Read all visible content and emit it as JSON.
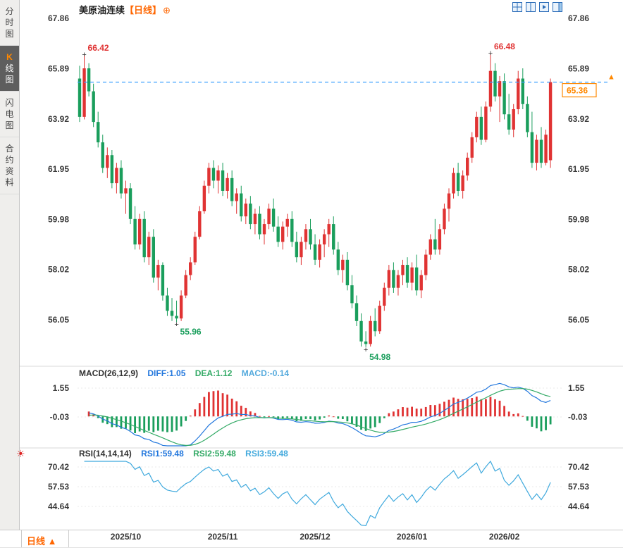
{
  "sidebar": {
    "items": [
      {
        "label": "分时图"
      },
      {
        "accent": "K",
        "label": "线图"
      },
      {
        "label": "闪电图"
      },
      {
        "label": "合约资料"
      }
    ]
  },
  "header": {
    "title": "美原油连续",
    "period_tag": "【日线】",
    "plus_icon": "⊕"
  },
  "footer": {
    "period": "日线",
    "arrow": "▲"
  },
  "colors": {
    "up": "#e03333",
    "down": "#1a9e5c",
    "accent": "#ff8800",
    "last_line": "#3aa0ff",
    "diff": "#2277dd",
    "dea": "#33aa66",
    "rsi_line": "#3fa9dd"
  },
  "chart_data": {
    "type": "candlestick",
    "title": "美原油连续【日线】",
    "y_ticks": [
      67.86,
      65.89,
      63.92,
      61.95,
      59.98,
      58.02,
      56.05
    ],
    "x_ticks": [
      {
        "index": 10,
        "label": "2025/10"
      },
      {
        "index": 31,
        "label": "2025/11"
      },
      {
        "index": 51,
        "label": "2025/12"
      },
      {
        "index": 72,
        "label": "2026/01"
      },
      {
        "index": 92,
        "label": "2026/02"
      }
    ],
    "last_price": 65.36,
    "annotations": [
      {
        "index": 1,
        "type": "high",
        "text": "66.42"
      },
      {
        "index": 89,
        "type": "high",
        "text": "66.48"
      },
      {
        "index": 21,
        "type": "low",
        "text": "55.96"
      },
      {
        "index": 62,
        "type": "low",
        "text": "54.98"
      }
    ],
    "candles": [
      [
        65.5,
        66.0,
        63.8,
        64.0
      ],
      [
        64.0,
        66.42,
        63.9,
        65.9
      ],
      [
        65.9,
        66.1,
        64.8,
        65.0
      ],
      [
        65.0,
        65.3,
        63.6,
        63.8
      ],
      [
        63.8,
        64.2,
        62.8,
        63.0
      ],
      [
        63.0,
        63.3,
        61.8,
        62.0
      ],
      [
        62.0,
        62.8,
        61.6,
        62.5
      ],
      [
        62.5,
        62.7,
        61.2,
        61.4
      ],
      [
        61.4,
        62.2,
        61.0,
        62.0
      ],
      [
        62.0,
        62.3,
        60.8,
        61.0
      ],
      [
        61.0,
        61.5,
        60.2,
        61.2
      ],
      [
        61.2,
        61.4,
        59.8,
        60.0
      ],
      [
        60.0,
        60.5,
        58.8,
        59.0
      ],
      [
        59.0,
        60.2,
        58.8,
        60.0
      ],
      [
        60.0,
        60.3,
        58.3,
        58.5
      ],
      [
        58.5,
        59.5,
        58.2,
        59.3
      ],
      [
        59.3,
        59.6,
        57.5,
        57.7
      ],
      [
        57.7,
        58.4,
        57.2,
        58.2
      ],
      [
        58.2,
        58.3,
        56.8,
        57.0
      ],
      [
        57.0,
        57.3,
        56.2,
        56.4
      ],
      [
        56.4,
        56.9,
        56.0,
        56.2
      ],
      [
        56.2,
        56.8,
        55.96,
        56.1
      ],
      [
        56.1,
        57.2,
        56.0,
        57.0
      ],
      [
        57.0,
        58.0,
        56.9,
        57.8
      ],
      [
        57.8,
        58.5,
        57.6,
        58.3
      ],
      [
        58.3,
        59.5,
        58.2,
        59.3
      ],
      [
        59.3,
        60.5,
        59.2,
        60.3
      ],
      [
        60.3,
        61.5,
        60.2,
        61.3
      ],
      [
        61.3,
        62.2,
        61.0,
        62.0
      ],
      [
        62.0,
        62.3,
        61.2,
        61.5
      ],
      [
        61.5,
        62.1,
        61.0,
        61.9
      ],
      [
        61.9,
        62.2,
        60.9,
        61.1
      ],
      [
        61.1,
        61.8,
        60.8,
        61.6
      ],
      [
        61.6,
        61.9,
        60.5,
        60.7
      ],
      [
        60.7,
        61.2,
        60.2,
        61.0
      ],
      [
        61.0,
        61.3,
        59.9,
        60.1
      ],
      [
        60.1,
        60.8,
        59.8,
        60.6
      ],
      [
        60.6,
        60.9,
        59.6,
        59.8
      ],
      [
        59.8,
        60.4,
        59.4,
        60.2
      ],
      [
        60.2,
        60.5,
        59.2,
        59.4
      ],
      [
        59.4,
        60.0,
        59.0,
        59.8
      ],
      [
        59.8,
        60.6,
        59.6,
        60.4
      ],
      [
        60.4,
        60.8,
        59.5,
        59.7
      ],
      [
        59.7,
        60.1,
        58.9,
        59.1
      ],
      [
        59.1,
        59.9,
        58.8,
        59.7
      ],
      [
        59.7,
        60.2,
        59.3,
        60.0
      ],
      [
        60.0,
        60.3,
        58.9,
        59.1
      ],
      [
        59.1,
        59.5,
        58.3,
        58.5
      ],
      [
        58.5,
        59.3,
        58.2,
        59.1
      ],
      [
        59.1,
        59.8,
        58.8,
        59.6
      ],
      [
        59.6,
        60.0,
        58.8,
        59.0
      ],
      [
        59.0,
        59.4,
        58.2,
        58.4
      ],
      [
        58.4,
        59.2,
        58.1,
        59.0
      ],
      [
        59.0,
        59.6,
        58.5,
        59.4
      ],
      [
        59.4,
        60.0,
        58.9,
        59.8
      ],
      [
        59.8,
        60.1,
        58.6,
        58.8
      ],
      [
        58.8,
        59.1,
        57.8,
        58.0
      ],
      [
        58.0,
        58.6,
        57.5,
        58.4
      ],
      [
        58.4,
        58.7,
        57.2,
        57.4
      ],
      [
        57.4,
        57.8,
        56.5,
        56.7
      ],
      [
        56.7,
        57.0,
        55.8,
        56.0
      ],
      [
        56.0,
        56.3,
        55.0,
        55.2
      ],
      [
        55.2,
        55.6,
        54.98,
        55.1
      ],
      [
        55.1,
        56.2,
        55.0,
        56.0
      ],
      [
        56.0,
        56.5,
        55.4,
        55.6
      ],
      [
        55.6,
        56.8,
        55.5,
        56.6
      ],
      [
        56.6,
        57.5,
        56.4,
        57.3
      ],
      [
        57.3,
        58.2,
        57.0,
        58.0
      ],
      [
        58.0,
        58.3,
        57.1,
        57.3
      ],
      [
        57.3,
        58.0,
        57.0,
        57.8
      ],
      [
        57.8,
        58.4,
        57.4,
        58.2
      ],
      [
        58.2,
        58.5,
        57.3,
        57.5
      ],
      [
        57.5,
        58.3,
        57.2,
        58.1
      ],
      [
        58.1,
        58.6,
        57.0,
        57.2
      ],
      [
        57.2,
        58.0,
        56.9,
        57.8
      ],
      [
        57.8,
        58.8,
        57.6,
        58.6
      ],
      [
        58.6,
        59.4,
        58.4,
        59.2
      ],
      [
        59.2,
        60.0,
        58.6,
        58.8
      ],
      [
        58.8,
        59.8,
        58.6,
        59.6
      ],
      [
        59.6,
        60.6,
        59.4,
        60.4
      ],
      [
        60.4,
        61.2,
        59.9,
        61.0
      ],
      [
        61.0,
        62.0,
        60.8,
        61.8
      ],
      [
        61.8,
        62.2,
        60.9,
        61.1
      ],
      [
        61.1,
        61.9,
        60.8,
        61.7
      ],
      [
        61.7,
        62.6,
        61.5,
        62.4
      ],
      [
        62.4,
        63.4,
        62.2,
        63.2
      ],
      [
        63.2,
        64.2,
        63.0,
        64.0
      ],
      [
        64.0,
        64.4,
        62.9,
        63.1
      ],
      [
        63.1,
        64.6,
        63.0,
        64.4
      ],
      [
        64.4,
        66.48,
        64.2,
        65.8
      ],
      [
        65.8,
        66.1,
        64.6,
        64.8
      ],
      [
        64.8,
        65.6,
        63.8,
        65.4
      ],
      [
        65.4,
        65.7,
        63.9,
        64.1
      ],
      [
        64.1,
        64.9,
        63.3,
        63.5
      ],
      [
        63.5,
        64.5,
        63.2,
        64.3
      ],
      [
        64.3,
        65.8,
        64.1,
        65.5
      ],
      [
        65.5,
        65.9,
        64.3,
        64.5
      ],
      [
        64.5,
        64.8,
        63.2,
        63.4
      ],
      [
        63.4,
        64.2,
        62.0,
        62.2
      ],
      [
        62.2,
        63.3,
        61.9,
        63.1
      ],
      [
        63.1,
        63.6,
        62.0,
        62.2
      ],
      [
        62.2,
        63.5,
        62.1,
        63.3
      ],
      [
        62.3,
        65.5,
        62.0,
        65.36
      ]
    ],
    "macd": {
      "label": "MACD(26,12,9)",
      "diff_label": "DIFF:1.05",
      "dea_label": "DEA:1.12",
      "macd_label": "MACD:-0.14",
      "y_ticks": [
        1.55,
        -0.03
      ]
    },
    "rsi": {
      "label": "RSI(14,14,14)",
      "rsi1_label": "RSI1:59.48",
      "rsi2_label": "RSI2:59.48",
      "rsi3_label": "RSI3:59.48",
      "y_ticks": [
        70.42,
        57.53,
        44.64
      ]
    }
  }
}
